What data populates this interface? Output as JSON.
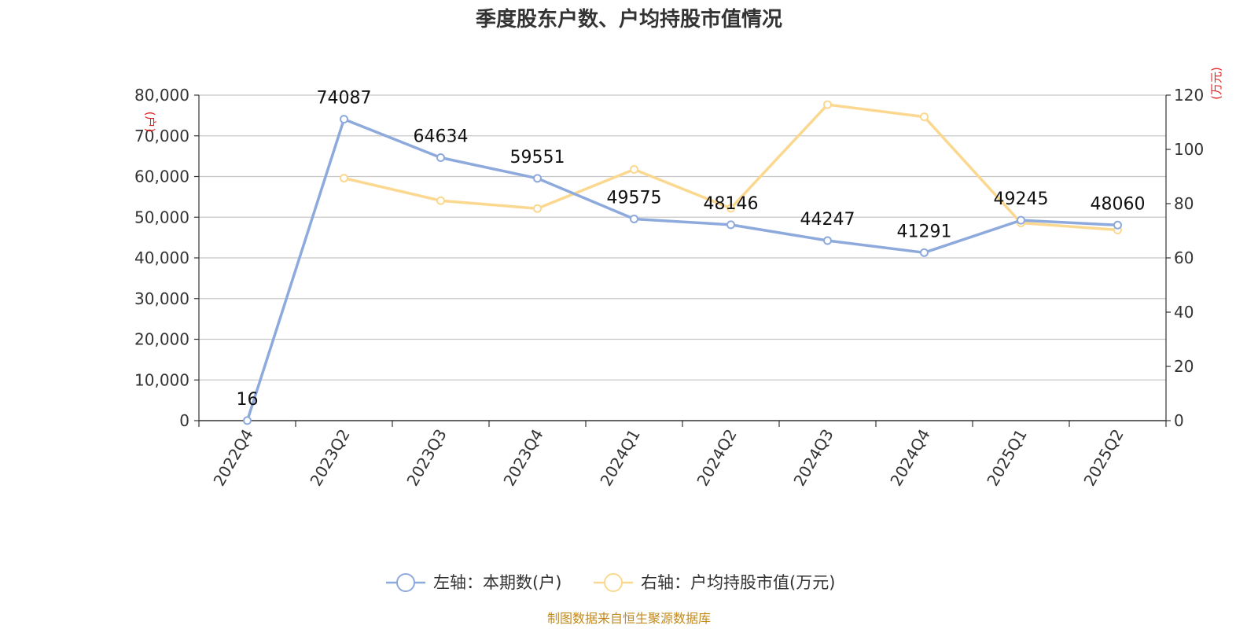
{
  "colors": {
    "left_series": "#8eaadc",
    "right_series": "#fbd88f",
    "grid": "#c8c8c8",
    "axis": "#333333",
    "unit": "#e02020",
    "source": "#c08a1e"
  },
  "chart_data": {
    "type": "line",
    "title": "季度股东户数、户均持股市值情况",
    "categories": [
      "2022Q4",
      "2023Q2",
      "2023Q3",
      "2023Q4",
      "2024Q1",
      "2024Q2",
      "2024Q3",
      "2024Q4",
      "2025Q1",
      "2025Q2"
    ],
    "left_axis": {
      "unit": "(户)",
      "ylim": [
        0,
        80000
      ],
      "ticks": [
        0,
        10000,
        20000,
        30000,
        40000,
        50000,
        60000,
        70000,
        80000
      ],
      "tick_labels": [
        "0",
        "10,000",
        "20,000",
        "30,000",
        "40,000",
        "50,000",
        "60,000",
        "70,000",
        "80,000"
      ]
    },
    "right_axis": {
      "unit": "(万元)",
      "ylim": [
        0,
        120
      ],
      "ticks": [
        0,
        20,
        40,
        60,
        80,
        100,
        120
      ],
      "tick_labels": [
        "0",
        "20",
        "40",
        "60",
        "80",
        "100",
        "120"
      ]
    },
    "series": [
      {
        "name": "左轴：本期数(户)",
        "axis": "left",
        "values": [
          16,
          74087,
          64634,
          59551,
          49575,
          48146,
          44247,
          41291,
          49245,
          48060
        ],
        "data_labels": [
          "16",
          "74087",
          "64634",
          "59551",
          "49575",
          "48146",
          "44247",
          "41291",
          "49245",
          "48060"
        ]
      },
      {
        "name": "右轴：户均持股市值(万元)",
        "axis": "right",
        "values": [
          null,
          89.4,
          81.1,
          78.2,
          92.6,
          78.3,
          116.5,
          112.0,
          72.9,
          70.3
        ]
      }
    ],
    "grid": true,
    "legend_position": "bottom-center"
  },
  "source": "制图数据来自恒生聚源数据库"
}
